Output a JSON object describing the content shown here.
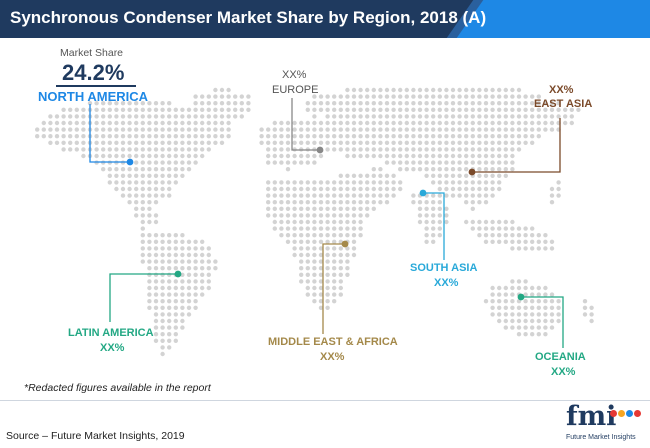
{
  "title": "Synchronous Condenser Market Share by Region, 2018 (A)",
  "market_share_label": "Market Share",
  "market_share_value": "24.2%",
  "regions": {
    "north_america": {
      "name": "NORTH AMERICA",
      "value": "24.2%",
      "color": "#1e88e5"
    },
    "europe": {
      "name": "EUROPE",
      "value": "XX%",
      "color": "#888888"
    },
    "east_asia": {
      "name": "EAST ASIA",
      "value": "XX%",
      "color": "#7b4a2a"
    },
    "south_asia": {
      "name": "SOUTH ASIA",
      "value": "XX%",
      "color": "#29a9d9"
    },
    "latin_america": {
      "name": "LATIN AMERICA",
      "value": "XX%",
      "color": "#23a884"
    },
    "middle_east_africa": {
      "name": "MIDDLE EAST & AFRICA",
      "value": "XX%",
      "color": "#a4894a"
    },
    "oceania": {
      "name": "OCEANIA",
      "value": "XX%",
      "color": "#23a884"
    }
  },
  "footnote": "*Redacted figures available in the report",
  "source": "Source – Future Market Insights, 2019",
  "logo": {
    "text": "fmi",
    "subtitle": "Future Market Insights",
    "dot_colors": [
      "#e53935",
      "#f6a623",
      "#1e88e5",
      "#e53935"
    ]
  },
  "colors": {
    "title_bar": "#1f3a5f",
    "title_accent": "#1e88e5",
    "map_dots": "#d3d3d3"
  }
}
